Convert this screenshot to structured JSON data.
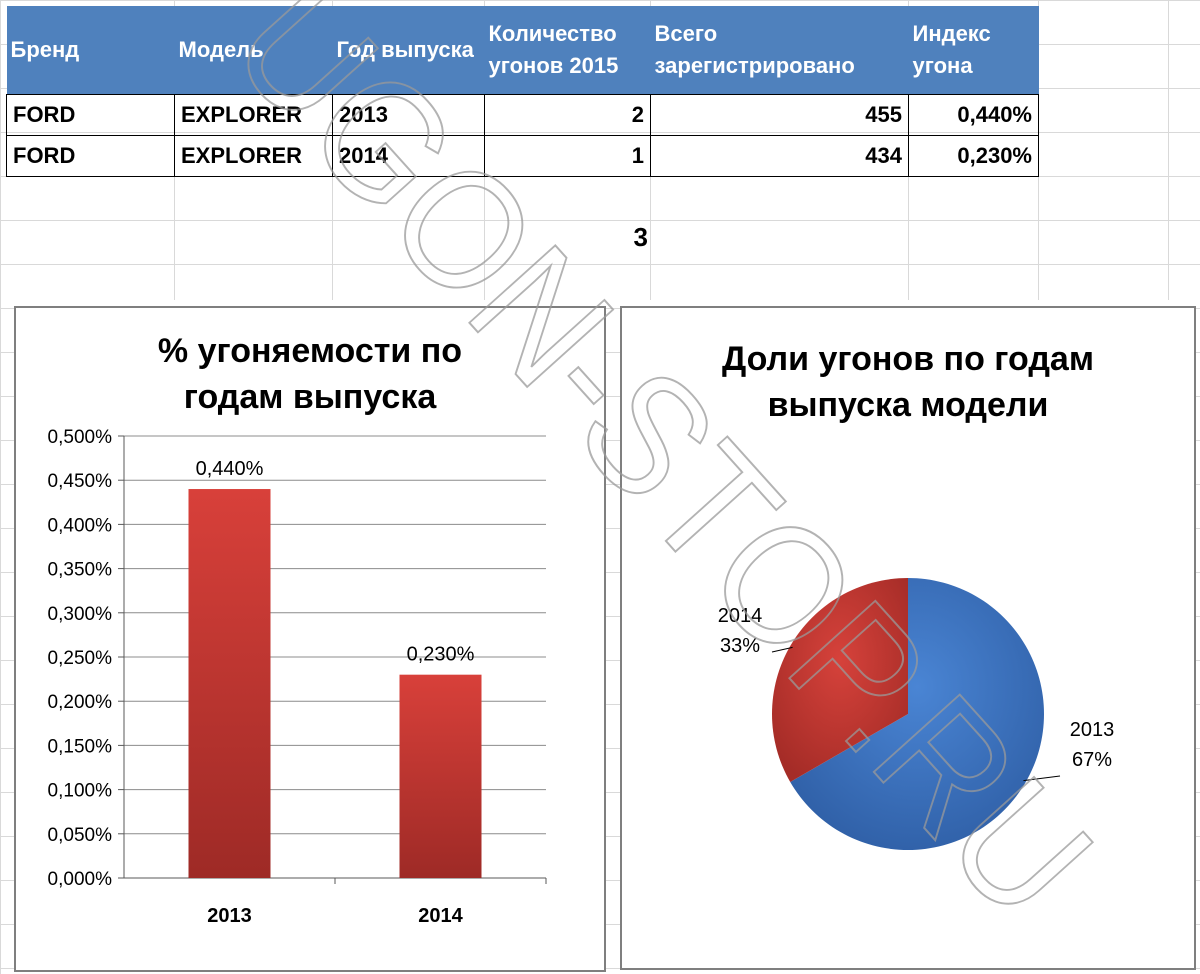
{
  "table": {
    "headers": [
      "Бренд",
      "Модель",
      "Год выпуска",
      "Количество угонов 2015",
      "Всего зарегистрировано",
      "Индекс угона"
    ],
    "rows": [
      [
        "FORD",
        "EXPLORER",
        "2013",
        "2",
        "455",
        "0,440%"
      ],
      [
        "FORD",
        "EXPLORER",
        "2014",
        "1",
        "434",
        "0,230%"
      ]
    ],
    "total": "3"
  },
  "watermark": "UGON-STOP.RU",
  "colors": {
    "header": "#4f81bd",
    "bar": "#c0392b",
    "pie_2013": "#3b6fbd",
    "pie_2014": "#c0392b"
  },
  "chart_data": [
    {
      "type": "bar",
      "title": "% угоняемости по годам выпуска",
      "title_lines": [
        "% угоняемости по",
        "годам выпуска"
      ],
      "categories": [
        "2013",
        "2014"
      ],
      "values": [
        0.44,
        0.23
      ],
      "data_labels": [
        "0,440%",
        "0,230%"
      ],
      "ylim": [
        0,
        0.5
      ],
      "yticks": [
        "0,000%",
        "0,050%",
        "0,100%",
        "0,150%",
        "0,200%",
        "0,250%",
        "0,300%",
        "0,350%",
        "0,400%",
        "0,450%",
        "0,500%"
      ],
      "grid": true,
      "legend": "none"
    },
    {
      "type": "pie",
      "title": "Доли угонов по годам выпуска модели",
      "title_lines": [
        "Доли угонов по годам",
        "выпуска модели"
      ],
      "labels": [
        "2013",
        "2014"
      ],
      "values": [
        2,
        1
      ],
      "percent_labels": [
        "67%",
        "33%"
      ],
      "legend": "none"
    }
  ]
}
